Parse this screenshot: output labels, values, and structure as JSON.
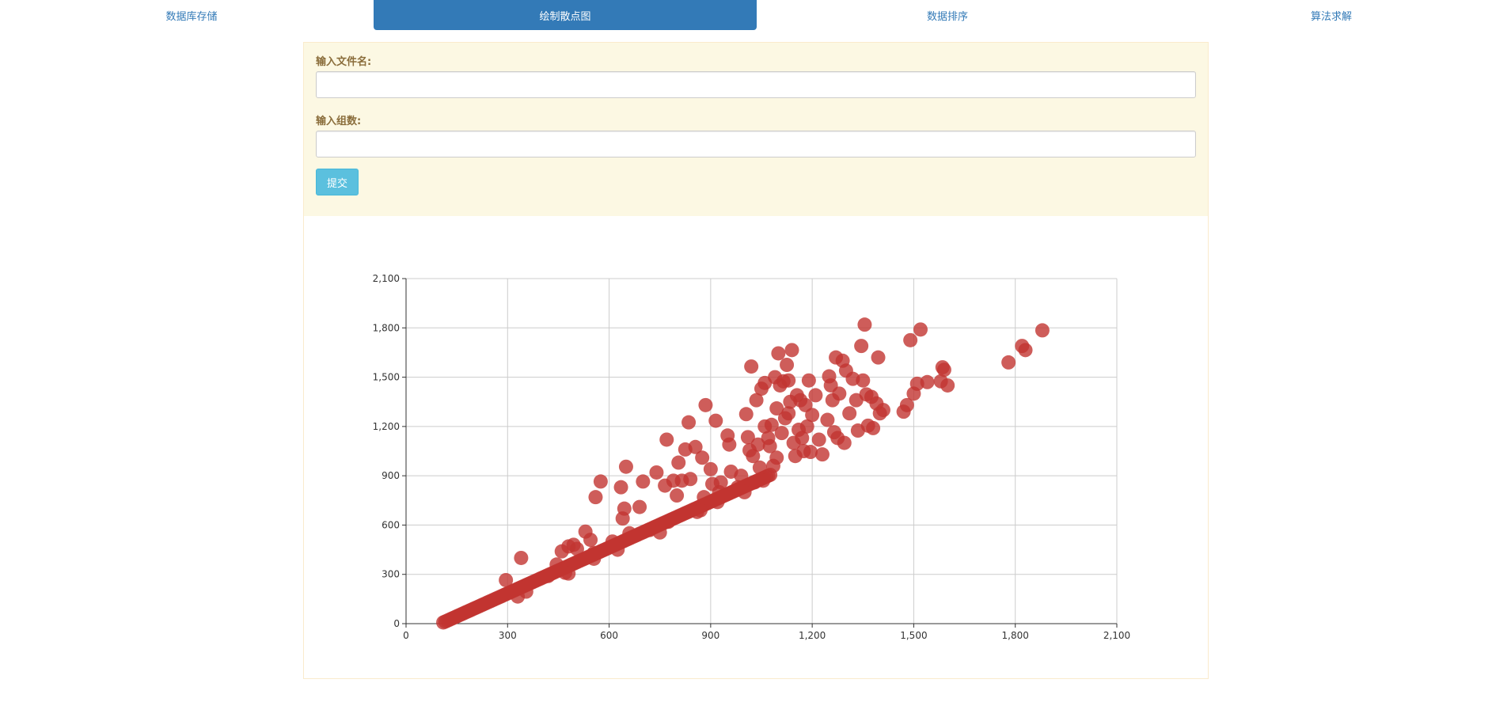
{
  "nav": {
    "tabs": [
      {
        "label": "数据库存储",
        "active": false
      },
      {
        "label": "绘制散点图",
        "active": true
      },
      {
        "label": "数据排序",
        "active": false
      },
      {
        "label": "算法求解",
        "active": false
      }
    ]
  },
  "form": {
    "filename_label": "输入文件名:",
    "filename_value": "",
    "groups_label": "输入组数:",
    "groups_value": "",
    "submit_label": "提交"
  },
  "colors": {
    "accent": "#337ab7",
    "panel_bg": "#fcf8e3",
    "button": "#5bc0de",
    "point": "#c23531"
  },
  "chart_data": {
    "type": "scatter",
    "title": "",
    "xlabel": "",
    "ylabel": "",
    "xlim": [
      0,
      2100
    ],
    "ylim": [
      0,
      2100
    ],
    "x_ticks": [
      0,
      300,
      600,
      900,
      1200,
      1500,
      1800,
      2100
    ],
    "y_ticks": [
      0,
      300,
      600,
      900,
      1200,
      1500,
      1800,
      2100
    ],
    "x_tick_labels": [
      "0",
      "300",
      "600",
      "900",
      "1,200",
      "1,500",
      "1,800",
      "2,100"
    ],
    "y_tick_labels": [
      "0",
      "300",
      "600",
      "900",
      "1,200",
      "1,500",
      "1,800",
      "2,100"
    ],
    "grid": true,
    "dense_band": {
      "x_start": 110,
      "x_end": 1080,
      "slope": 0.93,
      "intercept": -95
    },
    "points": [
      [
        295,
        265
      ],
      [
        340,
        400
      ],
      [
        330,
        165
      ],
      [
        355,
        195
      ],
      [
        420,
        290
      ],
      [
        445,
        360
      ],
      [
        460,
        440
      ],
      [
        470,
        310
      ],
      [
        480,
        470
      ],
      [
        480,
        305
      ],
      [
        495,
        480
      ],
      [
        505,
        455
      ],
      [
        530,
        560
      ],
      [
        545,
        510
      ],
      [
        555,
        395
      ],
      [
        555,
        430
      ],
      [
        560,
        770
      ],
      [
        575,
        865
      ],
      [
        610,
        500
      ],
      [
        625,
        450
      ],
      [
        635,
        830
      ],
      [
        640,
        640
      ],
      [
        645,
        700
      ],
      [
        650,
        955
      ],
      [
        660,
        550
      ],
      [
        690,
        710
      ],
      [
        700,
        865
      ],
      [
        720,
        570
      ],
      [
        740,
        920
      ],
      [
        750,
        555
      ],
      [
        765,
        840
      ],
      [
        770,
        1120
      ],
      [
        775,
        620
      ],
      [
        790,
        870
      ],
      [
        800,
        780
      ],
      [
        805,
        980
      ],
      [
        815,
        870
      ],
      [
        825,
        1060
      ],
      [
        835,
        1225
      ],
      [
        840,
        880
      ],
      [
        855,
        1075
      ],
      [
        860,
        680
      ],
      [
        870,
        690
      ],
      [
        875,
        1010
      ],
      [
        880,
        770
      ],
      [
        885,
        1330
      ],
      [
        900,
        940
      ],
      [
        905,
        850
      ],
      [
        915,
        1235
      ],
      [
        920,
        740
      ],
      [
        925,
        800
      ],
      [
        930,
        860
      ],
      [
        950,
        1145
      ],
      [
        955,
        1090
      ],
      [
        960,
        925
      ],
      [
        980,
        830
      ],
      [
        990,
        900
      ],
      [
        1000,
        800
      ],
      [
        1005,
        1275
      ],
      [
        1010,
        1135
      ],
      [
        1015,
        1055
      ],
      [
        1020,
        1565
      ],
      [
        1025,
        1020
      ],
      [
        1030,
        860
      ],
      [
        1035,
        1360
      ],
      [
        1040,
        1090
      ],
      [
        1045,
        950
      ],
      [
        1050,
        1430
      ],
      [
        1055,
        870
      ],
      [
        1060,
        1465
      ],
      [
        1060,
        1200
      ],
      [
        1070,
        1130
      ],
      [
        1075,
        1080
      ],
      [
        1080,
        1210
      ],
      [
        1085,
        960
      ],
      [
        1090,
        1500
      ],
      [
        1095,
        1010
      ],
      [
        1095,
        1310
      ],
      [
        1100,
        1645
      ],
      [
        1105,
        1450
      ],
      [
        1110,
        1160
      ],
      [
        1115,
        1475
      ],
      [
        1120,
        1250
      ],
      [
        1125,
        1575
      ],
      [
        1130,
        1480
      ],
      [
        1130,
        1280
      ],
      [
        1135,
        1350
      ],
      [
        1140,
        1665
      ],
      [
        1145,
        1100
      ],
      [
        1150,
        1020
      ],
      [
        1155,
        1390
      ],
      [
        1160,
        1180
      ],
      [
        1165,
        1360
      ],
      [
        1170,
        1130
      ],
      [
        1175,
        1050
      ],
      [
        1180,
        1330
      ],
      [
        1185,
        1200
      ],
      [
        1190,
        1480
      ],
      [
        1195,
        1045
      ],
      [
        1200,
        1270
      ],
      [
        1210,
        1390
      ],
      [
        1220,
        1120
      ],
      [
        1230,
        1030
      ],
      [
        1245,
        1240
      ],
      [
        1250,
        1505
      ],
      [
        1255,
        1450
      ],
      [
        1260,
        1360
      ],
      [
        1265,
        1165
      ],
      [
        1270,
        1620
      ],
      [
        1275,
        1130
      ],
      [
        1280,
        1400
      ],
      [
        1290,
        1600
      ],
      [
        1295,
        1100
      ],
      [
        1300,
        1540
      ],
      [
        1310,
        1280
      ],
      [
        1320,
        1490
      ],
      [
        1330,
        1360
      ],
      [
        1335,
        1175
      ],
      [
        1345,
        1690
      ],
      [
        1350,
        1480
      ],
      [
        1355,
        1820
      ],
      [
        1360,
        1395
      ],
      [
        1365,
        1205
      ],
      [
        1375,
        1380
      ],
      [
        1380,
        1190
      ],
      [
        1390,
        1340
      ],
      [
        1395,
        1620
      ],
      [
        1400,
        1280
      ],
      [
        1410,
        1300
      ],
      [
        1470,
        1290
      ],
      [
        1480,
        1330
      ],
      [
        1490,
        1725
      ],
      [
        1500,
        1400
      ],
      [
        1510,
        1460
      ],
      [
        1520,
        1790
      ],
      [
        1540,
        1470
      ],
      [
        1580,
        1475
      ],
      [
        1585,
        1560
      ],
      [
        1590,
        1545
      ],
      [
        1600,
        1450
      ],
      [
        1780,
        1590
      ],
      [
        1820,
        1690
      ],
      [
        1830,
        1665
      ],
      [
        1880,
        1785
      ]
    ]
  }
}
